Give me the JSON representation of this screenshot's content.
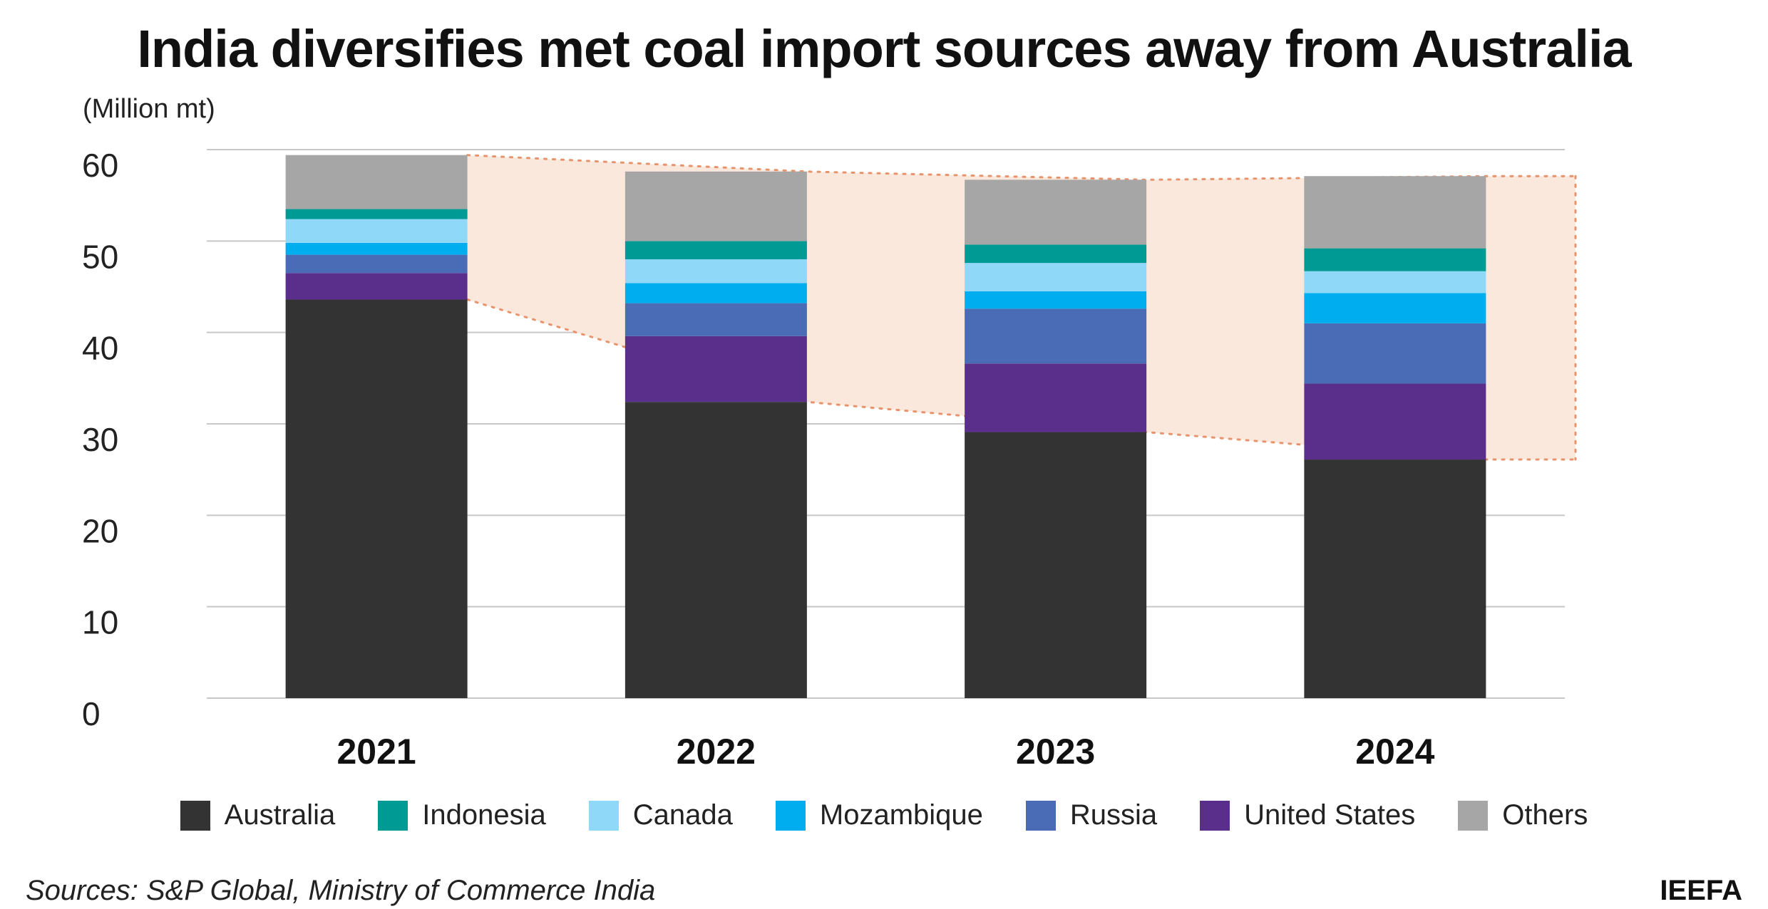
{
  "title": "India diversifies met coal import sources away from Australia",
  "source": "Sources: S&P Global, Ministry of Commerce India",
  "brand": "IEEFA",
  "chart_data": {
    "type": "bar",
    "stacked": true,
    "unit_label": "(Million mt)",
    "categories": [
      "2021",
      "2022",
      "2023",
      "2024"
    ],
    "ylim": [
      0,
      60
    ],
    "yticks": [
      "0",
      "10",
      "20",
      "30",
      "40",
      "50",
      "60"
    ],
    "grid": true,
    "legend_position": "bottom",
    "series": [
      {
        "name": "Australia",
        "color": "#333333",
        "values": [
          43.6,
          32.4,
          29.1,
          26.1
        ]
      },
      {
        "name": "United States",
        "color": "#5a2f8b",
        "values": [
          2.9,
          7.2,
          7.5,
          8.3
        ]
      },
      {
        "name": "Russia",
        "color": "#4a6bb5",
        "values": [
          2.0,
          3.6,
          6.0,
          6.6
        ]
      },
      {
        "name": "Mozambique",
        "color": "#00aeef",
        "values": [
          1.3,
          2.2,
          1.9,
          3.3
        ]
      },
      {
        "name": "Canada",
        "color": "#8fd8f7",
        "values": [
          2.6,
          2.6,
          3.1,
          2.4
        ]
      },
      {
        "name": "Indonesia",
        "color": "#009a94",
        "values": [
          1.1,
          2.0,
          2.0,
          2.5
        ]
      },
      {
        "name": "Others",
        "color": "#a6a6a6",
        "values": [
          5.9,
          7.6,
          7.1,
          7.9
        ]
      }
    ],
    "legend_order": [
      "Australia",
      "Indonesia",
      "Canada",
      "Mozambique",
      "Russia",
      "United States",
      "Others"
    ],
    "highlight_band": {
      "color": "#fbe8dc",
      "border": "#e8936b",
      "from_series": "Australia",
      "description_hidden": true
    }
  }
}
